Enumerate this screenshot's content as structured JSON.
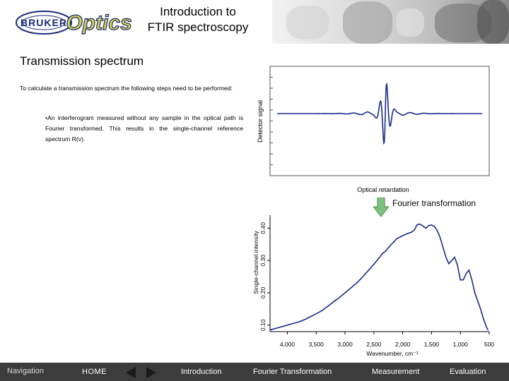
{
  "header": {
    "title_line1": "Introduction to",
    "title_line2": "FTIR spectroscopy",
    "logo_left": "BRUKER",
    "logo_right": "Optics"
  },
  "main": {
    "section_title": "Transmission spectrum",
    "intro_text": "To calculate a transmission spectrum the following steps need to be performed:",
    "bullet_text": "•An interferogram measured without any sample in the optical path is Fourier transformed. This results in the single-channel reference spectrum R(ν).",
    "fourier_label": "Fourier transformation"
  },
  "chart_data": [
    {
      "type": "line",
      "title": "",
      "xlabel": "Optical retardation",
      "ylabel": "Detector signal",
      "description_series": "interferogram centerburst"
    },
    {
      "type": "line",
      "title": "",
      "xlabel": "Wavenumber, cm⁻¹",
      "ylabel": "Single-channel intensity",
      "x_ticks": [
        "4,000",
        "3,500",
        "3,000",
        "2,500",
        "2,000",
        "1,500",
        "1,000",
        "500"
      ],
      "y_ticks": [
        "0.10",
        "0.20",
        "0.30",
        "0.40"
      ],
      "xlim": [
        4300,
        500
      ],
      "ylim": [
        0.08,
        0.44
      ],
      "series": [
        {
          "name": "single-channel reference spectrum",
          "x": [
            4300,
            4200,
            4100,
            4000,
            3900,
            3800,
            3700,
            3600,
            3500,
            3400,
            3300,
            3200,
            3100,
            3000,
            2900,
            2800,
            2700,
            2600,
            2500,
            2400,
            2350,
            2300,
            2200,
            2100,
            2000,
            1900,
            1850,
            1800,
            1750,
            1700,
            1650,
            1600,
            1550,
            1500,
            1450,
            1400,
            1350,
            1300,
            1250,
            1200,
            1150,
            1100,
            1050,
            1000,
            950,
            900,
            850,
            800,
            750,
            700,
            650,
            600,
            550,
            520
          ],
          "y": [
            0.085,
            0.09,
            0.095,
            0.1,
            0.105,
            0.11,
            0.117,
            0.126,
            0.135,
            0.145,
            0.158,
            0.172,
            0.185,
            0.2,
            0.215,
            0.23,
            0.248,
            0.268,
            0.288,
            0.31,
            0.322,
            0.33,
            0.348,
            0.365,
            0.375,
            0.385,
            0.39,
            0.395,
            0.41,
            0.41,
            0.405,
            0.4,
            0.41,
            0.412,
            0.405,
            0.39,
            0.37,
            0.34,
            0.31,
            0.29,
            0.3,
            0.31,
            0.285,
            0.24,
            0.24,
            0.26,
            0.27,
            0.24,
            0.2,
            0.175,
            0.15,
            0.12,
            0.095,
            0.085
          ]
        }
      ]
    }
  ],
  "footer": {
    "navigation": "Navigation",
    "home": "HOME",
    "links": [
      "Introduction",
      "Fourier Transformation",
      "Measurement",
      "Evaluation"
    ]
  }
}
